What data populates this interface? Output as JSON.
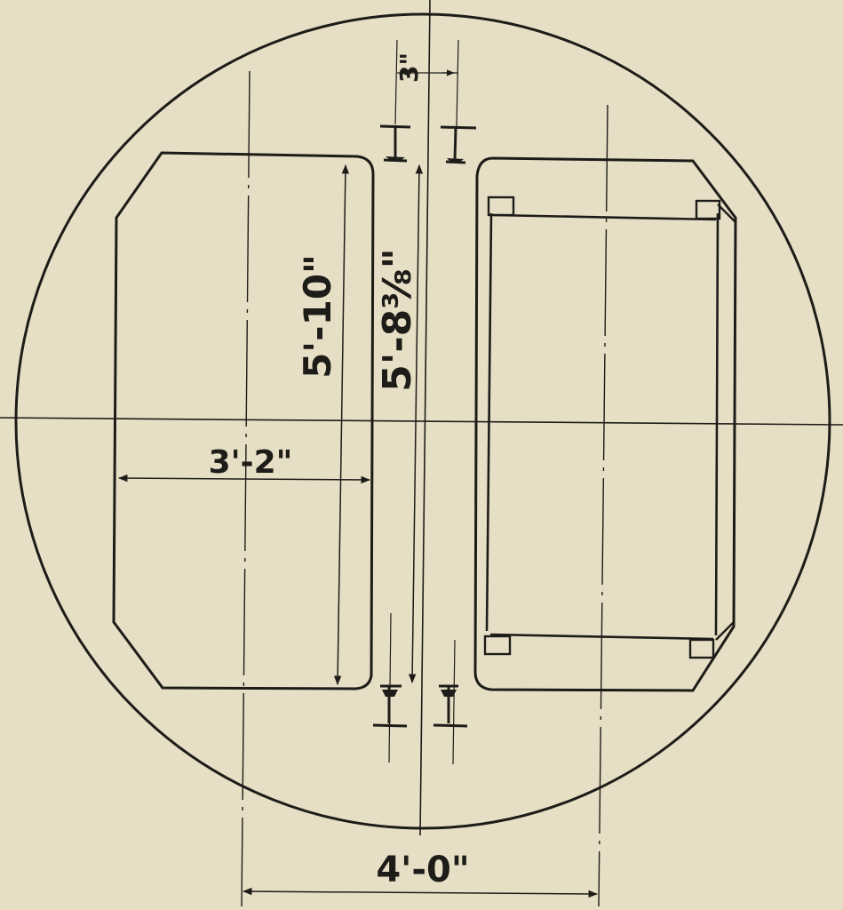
{
  "dimensions": {
    "gap_width": "3\"",
    "car_height": "5'-10\"",
    "car_width": "3'-2\"",
    "rail_span": "5'-8⅜\"",
    "track_centers": "4'-0\""
  }
}
